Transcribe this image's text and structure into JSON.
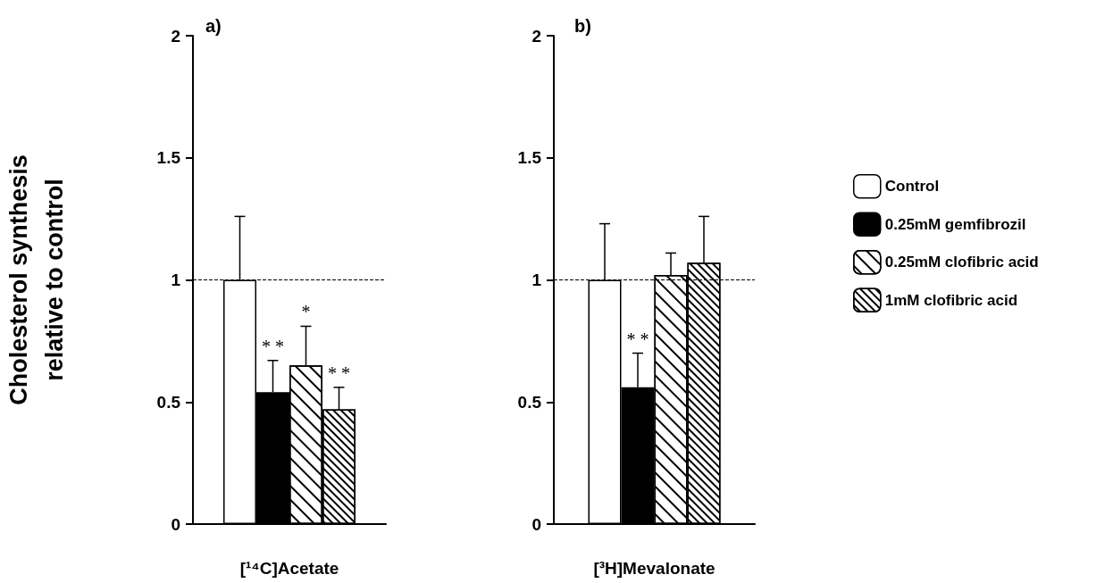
{
  "chart_data": [
    {
      "type": "bar",
      "title": "a)",
      "xlabel": "[¹⁴C]Acetate",
      "ylabel": "Cholesterol synthesis\nrelative to control",
      "categories": [
        null
      ],
      "series": [
        {
          "color": "#ffffff",
          "values": [
            1.0
          ],
          "errors": [
            [
              1.0,
              1.26
            ]
          ]
        },
        {
          "color": "#000000",
          "values": [
            0.54
          ],
          "errors": [
            [
              0.54,
              0.67
            ]
          ],
          "value_labels": [
            "* *"
          ]
        },
        {
          "color": "#ffffff",
          "values": [
            0.65
          ],
          "errors": [
            [
              0.65,
              0.81
            ]
          ],
          "value_labels": [
            "*"
          ]
        },
        {
          "color": "#ffffff",
          "values": [
            0.47
          ],
          "errors": [
            [
              0.47,
              0.56
            ]
          ],
          "value_labels": [
            "* *"
          ]
        }
      ],
      "ylim": [
        0,
        2
      ],
      "yticks": [
        0,
        0.5,
        1,
        1.5,
        2
      ],
      "grid": false,
      "legend": false,
      "ref_lines": [
        {
          "axis": "y",
          "value": 1,
          "line_style": "dashed",
          "color": "#000000"
        }
      ]
    },
    {
      "type": "bar",
      "title": "b)",
      "xlabel": "[³H]Mevalonate",
      "categories": [
        null
      ],
      "series": [
        {
          "name": "Control",
          "color": "#ffffff",
          "values": [
            1.0
          ],
          "errors": [
            [
              1.0,
              1.23
            ]
          ]
        },
        {
          "name": "0.25mM gemfibrozil",
          "color": "#000000",
          "values": [
            0.56
          ],
          "errors": [
            [
              0.56,
              0.7
            ]
          ],
          "value_labels": [
            "* *"
          ]
        },
        {
          "name": "0.25mM clofibric acid",
          "color": "#ffffff",
          "values": [
            1.02
          ],
          "errors": [
            [
              1.02,
              1.11
            ]
          ]
        },
        {
          "name": "1mM clofibric acid",
          "color": "#ffffff",
          "values": [
            1.07
          ],
          "errors": [
            [
              1.07,
              1.26
            ]
          ]
        }
      ],
      "ylim": [
        0,
        2
      ],
      "yticks": [
        0,
        0.5,
        1,
        1.5,
        2
      ],
      "grid": false,
      "legend": "right",
      "ref_lines": [
        {
          "axis": "y",
          "value": 1,
          "line_style": "dashed",
          "color": "#000000"
        }
      ]
    }
  ]
}
